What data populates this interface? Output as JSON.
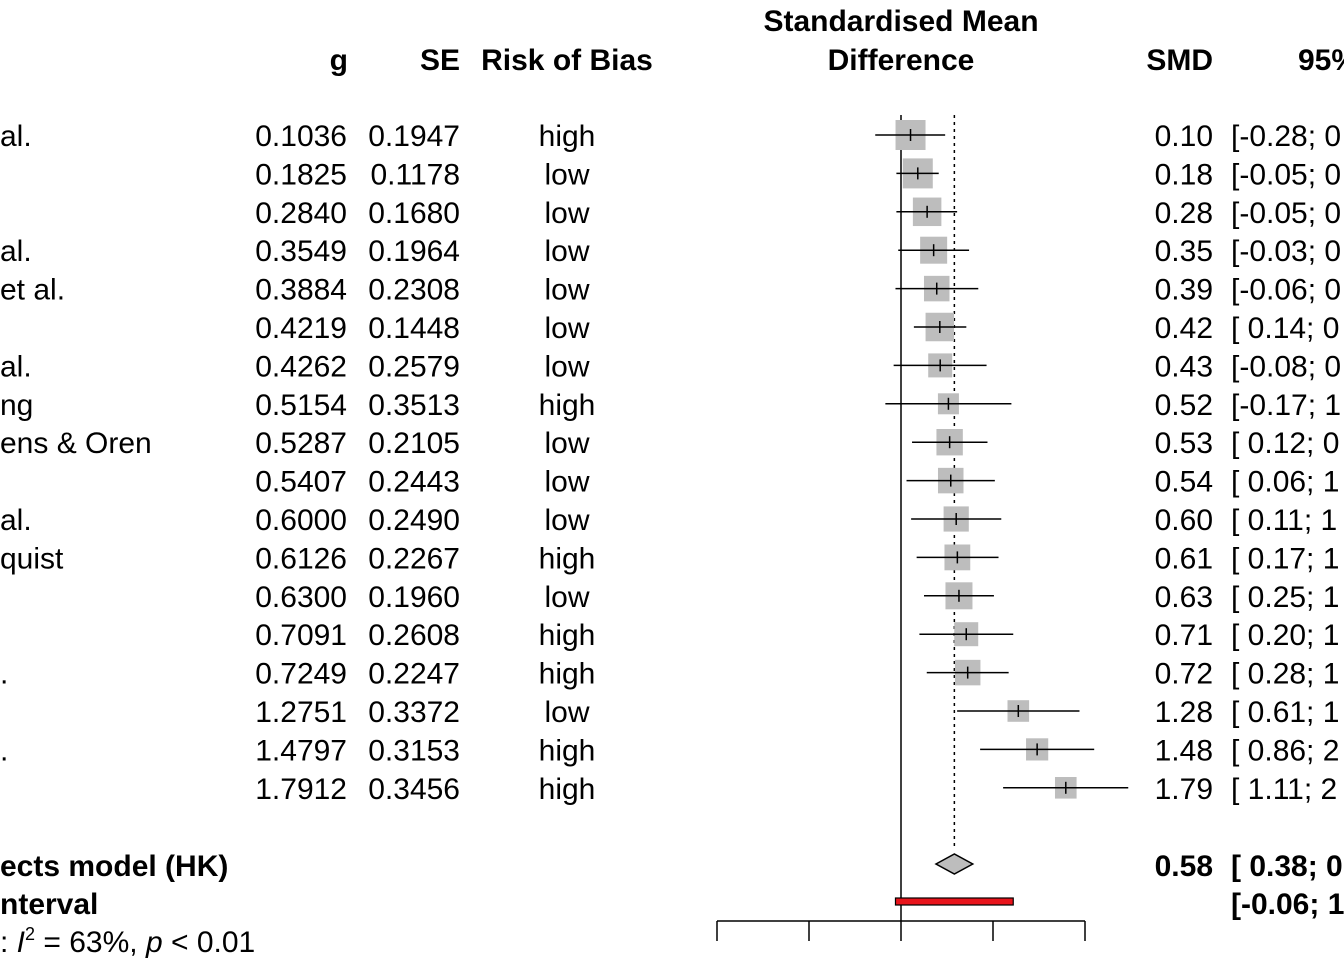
{
  "headers": {
    "g": "g",
    "se": "SE",
    "rob": "Risk of Bias",
    "smd_title_line1": "Standardised Mean",
    "smd_title_line2": "Difference",
    "smd": "SMD",
    "ci": "95%"
  },
  "studies": [
    {
      "label": "al.",
      "g": "0.1036",
      "se": "0.1947",
      "rob": "high",
      "smd": "0.10",
      "ci": "[-0.28; 0"
    },
    {
      "label": "",
      "g": "0.1825",
      "se": "0.1178",
      "rob": "low",
      "smd": "0.18",
      "ci": "[-0.05; 0"
    },
    {
      "label": "",
      "g": "0.2840",
      "se": "0.1680",
      "rob": "low",
      "smd": "0.28",
      "ci": "[-0.05; 0"
    },
    {
      "label": "al.",
      "g": "0.3549",
      "se": "0.1964",
      "rob": "low",
      "smd": "0.35",
      "ci": "[-0.03; 0"
    },
    {
      "label": "et al.",
      "g": "0.3884",
      "se": "0.2308",
      "rob": "low",
      "smd": "0.39",
      "ci": "[-0.06; 0"
    },
    {
      "label": "",
      "g": "0.4219",
      "se": "0.1448",
      "rob": "low",
      "smd": "0.42",
      "ci": "[ 0.14; 0"
    },
    {
      "label": "al.",
      "g": "0.4262",
      "se": "0.2579",
      "rob": "low",
      "smd": "0.43",
      "ci": "[-0.08; 0"
    },
    {
      "label": "ng",
      "g": "0.5154",
      "se": "0.3513",
      "rob": "high",
      "smd": "0.52",
      "ci": "[-0.17; 1"
    },
    {
      "label": "ens & Oren",
      "g": "0.5287",
      "se": "0.2105",
      "rob": "low",
      "smd": "0.53",
      "ci": "[ 0.12; 0"
    },
    {
      "label": "",
      "g": "0.5407",
      "se": "0.2443",
      "rob": "low",
      "smd": "0.54",
      "ci": "[ 0.06; 1"
    },
    {
      "label": "al.",
      "g": "0.6000",
      "se": "0.2490",
      "rob": "low",
      "smd": "0.60",
      "ci": "[ 0.11; 1"
    },
    {
      "label": "quist",
      "g": "0.6126",
      "se": "0.2267",
      "rob": "high",
      "smd": "0.61",
      "ci": "[ 0.17; 1"
    },
    {
      "label": "",
      "g": "0.6300",
      "se": "0.1960",
      "rob": "low",
      "smd": "0.63",
      "ci": "[ 0.25; 1"
    },
    {
      "label": "",
      "g": "0.7091",
      "se": "0.2608",
      "rob": "high",
      "smd": "0.71",
      "ci": "[ 0.20; 1"
    },
    {
      "label": ".",
      "g": "0.7249",
      "se": "0.2247",
      "rob": "high",
      "smd": "0.72",
      "ci": "[ 0.28; 1"
    },
    {
      "label": "",
      "g": "1.2751",
      "se": "0.3372",
      "rob": "low",
      "smd": "1.28",
      "ci": "[ 0.61; 1"
    },
    {
      "label": ".",
      "g": "1.4797",
      "se": "0.3153",
      "rob": "high",
      "smd": "1.48",
      "ci": "[ 0.86; 2"
    },
    {
      "label": "",
      "g": "1.7912",
      "se": "0.3456",
      "rob": "high",
      "smd": "1.79",
      "ci": "[ 1.11; 2"
    }
  ],
  "summary": {
    "model_label": "ects model (HK)",
    "smd": "0.58",
    "ci": "[ 0.38; 0",
    "pi_label": "nterval",
    "pi_ci": "[-0.06; 1",
    "heterogeneity_prefix": ": ",
    "heterogeneity_i": "I",
    "heterogeneity_sup": "2",
    "heterogeneity_value": " = 63%, ",
    "heterogeneity_p": "p",
    "heterogeneity_pval": " < 0.01"
  },
  "chart_data": {
    "type": "forest",
    "null_line": 0,
    "colors": {
      "square": "#bdbdbd",
      "diamond": "#bdbdbd",
      "prediction_interval": "#e8141b"
    },
    "points": [
      {
        "est": 0.1036,
        "lo": -0.28,
        "hi": 0.48,
        "weight": 1.0
      },
      {
        "est": 0.1825,
        "lo": -0.05,
        "hi": 0.41,
        "weight": 1.0
      },
      {
        "est": 0.284,
        "lo": -0.05,
        "hi": 0.61,
        "weight": 0.95
      },
      {
        "est": 0.3549,
        "lo": -0.03,
        "hi": 0.74,
        "weight": 0.9
      },
      {
        "est": 0.3884,
        "lo": -0.06,
        "hi": 0.84,
        "weight": 0.85
      },
      {
        "est": 0.4219,
        "lo": 0.14,
        "hi": 0.71,
        "weight": 0.95
      },
      {
        "est": 0.4262,
        "lo": -0.08,
        "hi": 0.93,
        "weight": 0.8
      },
      {
        "est": 0.5154,
        "lo": -0.17,
        "hi": 1.2,
        "weight": 0.7
      },
      {
        "est": 0.5287,
        "lo": 0.12,
        "hi": 0.94,
        "weight": 0.88
      },
      {
        "est": 0.5407,
        "lo": 0.06,
        "hi": 1.02,
        "weight": 0.85
      },
      {
        "est": 0.6,
        "lo": 0.11,
        "hi": 1.09,
        "weight": 0.84
      },
      {
        "est": 0.6126,
        "lo": 0.17,
        "hi": 1.06,
        "weight": 0.86
      },
      {
        "est": 0.63,
        "lo": 0.25,
        "hi": 1.01,
        "weight": 0.9
      },
      {
        "est": 0.7091,
        "lo": 0.2,
        "hi": 1.22,
        "weight": 0.8
      },
      {
        "est": 0.7249,
        "lo": 0.28,
        "hi": 1.17,
        "weight": 0.85
      },
      {
        "est": 1.2751,
        "lo": 0.61,
        "hi": 1.94,
        "weight": 0.72
      },
      {
        "est": 1.4797,
        "lo": 0.86,
        "hi": 2.1,
        "weight": 0.74
      },
      {
        "est": 1.7912,
        "lo": 1.11,
        "hi": 2.47,
        "weight": 0.72
      }
    ],
    "pooled": {
      "est": 0.58,
      "lo": 0.38,
      "hi": 0.78
    },
    "prediction_interval": {
      "lo": -0.06,
      "hi": 1.22
    },
    "xlim": [
      -2,
      2
    ],
    "xticks": [
      -2,
      -1,
      0,
      1,
      2
    ],
    "tick_labels_shown": false
  }
}
